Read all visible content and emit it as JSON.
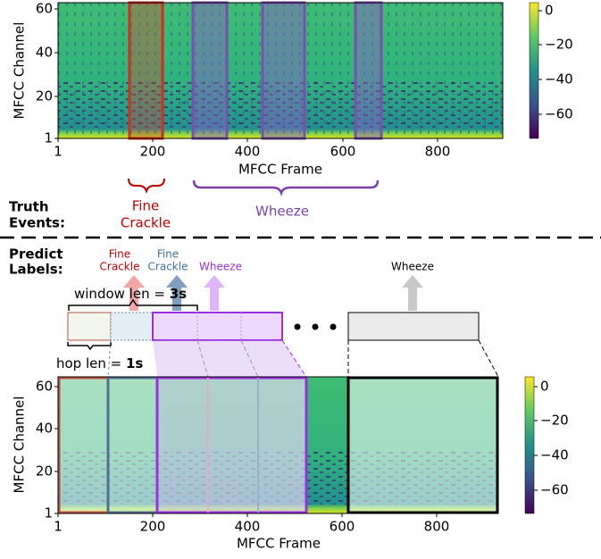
{
  "top_panel": {
    "y_label": "MFCC Channel",
    "x_label": "MFCC Frame",
    "xticks": [
      "1",
      "200",
      "400",
      "600",
      "800"
    ],
    "yticks": [
      "1",
      "20",
      "40",
      "60"
    ],
    "colorbar_ticks": [
      "0",
      "−20",
      "−40",
      "−60"
    ]
  },
  "truth": {
    "label": [
      "Truth",
      "Events:"
    ],
    "events": [
      {
        "label": [
          "Fine",
          "Crackle"
        ]
      },
      {
        "label": [
          "Wheeze"
        ]
      }
    ]
  },
  "predict": {
    "label": [
      "Predict",
      "Labels:"
    ],
    "labels": [
      [
        "Fine",
        "Crackle"
      ],
      [
        "Fine",
        "Crackle"
      ],
      [
        "Wheeze"
      ],
      [
        "Wheeze"
      ]
    ]
  },
  "window": {
    "text": "window len = ",
    "value": "3s"
  },
  "hop": {
    "text": "hop len = ",
    "value": "1s"
  },
  "bottom_panel": {
    "y_label": "MFCC Channel",
    "x_label": "MFCC Frame",
    "xticks": [
      "1",
      "200",
      "400",
      "600",
      "800"
    ],
    "yticks": [
      "1",
      "20",
      "40",
      "60"
    ],
    "colorbar_ticks": [
      "0",
      "−20",
      "−40",
      "−60"
    ]
  }
}
